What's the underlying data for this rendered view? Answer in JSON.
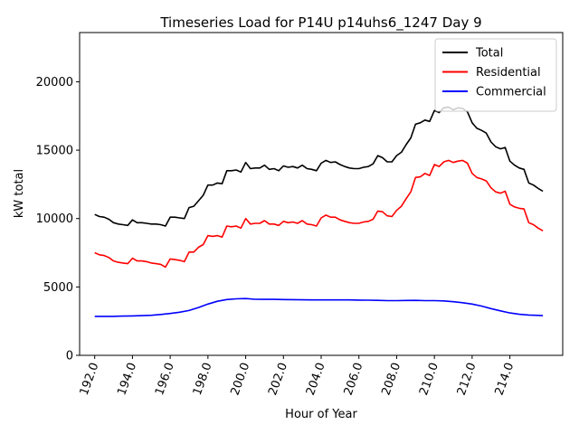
{
  "chart_data": {
    "type": "line",
    "title": "Timeseries Load for P14U p14uhs6_1247  Day 9",
    "xlabel": "Hour of Year",
    "ylabel": "kW total",
    "xlim": [
      191.2,
      216.8
    ],
    "ylim": [
      0,
      23600
    ],
    "xticks": [
      192,
      194,
      196,
      198,
      200,
      202,
      204,
      206,
      208,
      210,
      212,
      214
    ],
    "xtick_labels": [
      "192.0",
      "194.0",
      "196.0",
      "198.0",
      "200.0",
      "202.0",
      "204.0",
      "206.0",
      "208.0",
      "210.0",
      "212.0",
      "214.0"
    ],
    "yticks": [
      0,
      5000,
      10000,
      15000,
      20000
    ],
    "ytick_labels": [
      "0",
      "5000",
      "10000",
      "15000",
      "20000"
    ],
    "legend_position": "top-right",
    "series": [
      {
        "name": "Total",
        "color": "#000000",
        "x": [
          192.0,
          192.25,
          192.5,
          192.75,
          193.0,
          193.25,
          193.5,
          193.75,
          194.0,
          194.25,
          194.5,
          194.75,
          195.0,
          195.25,
          195.5,
          195.75,
          196.0,
          196.25,
          196.5,
          196.75,
          197.0,
          197.25,
          197.5,
          197.75,
          198.0,
          198.25,
          198.5,
          198.75,
          199.0,
          199.25,
          199.5,
          199.75,
          200.0,
          200.25,
          200.5,
          200.75,
          201.0,
          201.25,
          201.5,
          201.75,
          202.0,
          202.25,
          202.5,
          202.75,
          203.0,
          203.25,
          203.5,
          203.75,
          204.0,
          204.25,
          204.5,
          204.75,
          205.0,
          205.25,
          205.5,
          205.75,
          206.0,
          206.25,
          206.5,
          206.75,
          207.0,
          207.25,
          207.5,
          207.75,
          208.0,
          208.25,
          208.5,
          208.75,
          209.0,
          209.25,
          209.5,
          209.75,
          210.0,
          210.25,
          210.5,
          210.75,
          211.0,
          211.25,
          211.5,
          211.75,
          212.0,
          212.25,
          212.5,
          212.75,
          213.0,
          213.25,
          213.5,
          213.75,
          214.0,
          214.25,
          214.5,
          214.75,
          215.0,
          215.25,
          215.5,
          215.75
        ],
        "values": [
          10300,
          10150,
          10100,
          9950,
          9700,
          9600,
          9550,
          9500,
          9900,
          9700,
          9700,
          9650,
          9600,
          9600,
          9550,
          9450,
          10100,
          10100,
          10050,
          10000,
          10800,
          10900,
          11300,
          11700,
          12450,
          12450,
          12600,
          12550,
          13500,
          13500,
          13550,
          13400,
          14100,
          13650,
          13700,
          13700,
          13900,
          13600,
          13650,
          13500,
          13850,
          13750,
          13800,
          13700,
          13900,
          13650,
          13600,
          13500,
          14050,
          14250,
          14100,
          14150,
          13950,
          13800,
          13700,
          13650,
          13650,
          13750,
          13800,
          14000,
          14600,
          14450,
          14150,
          14150,
          14600,
          14850,
          15400,
          15900,
          16900,
          17000,
          17200,
          17100,
          17900,
          17750,
          18100,
          18150,
          17950,
          18100,
          18050,
          17800,
          17000,
          16600,
          16450,
          16250,
          15600,
          15250,
          15100,
          15200,
          14200,
          13900,
          13700,
          13600,
          12600,
          12450,
          12200,
          12000
        ]
      },
      {
        "name": "Residential",
        "color": "#ff0000",
        "x": [
          192.0,
          192.25,
          192.5,
          192.75,
          193.0,
          193.25,
          193.5,
          193.75,
          194.0,
          194.25,
          194.5,
          194.75,
          195.0,
          195.25,
          195.5,
          195.75,
          196.0,
          196.25,
          196.5,
          196.75,
          197.0,
          197.25,
          197.5,
          197.75,
          198.0,
          198.25,
          198.5,
          198.75,
          199.0,
          199.25,
          199.5,
          199.75,
          200.0,
          200.25,
          200.5,
          200.75,
          201.0,
          201.25,
          201.5,
          201.75,
          202.0,
          202.25,
          202.5,
          202.75,
          203.0,
          203.25,
          203.5,
          203.75,
          204.0,
          204.25,
          204.5,
          204.75,
          205.0,
          205.25,
          205.5,
          205.75,
          206.0,
          206.25,
          206.5,
          206.75,
          207.0,
          207.25,
          207.5,
          207.75,
          208.0,
          208.25,
          208.5,
          208.75,
          209.0,
          209.25,
          209.5,
          209.75,
          210.0,
          210.25,
          210.5,
          210.75,
          211.0,
          211.25,
          211.5,
          211.75,
          212.0,
          212.25,
          212.5,
          212.75,
          213.0,
          213.25,
          213.5,
          213.75,
          214.0,
          214.25,
          214.5,
          214.75,
          215.0,
          215.25,
          215.5,
          215.75
        ],
        "values": [
          7500,
          7350,
          7300,
          7150,
          6900,
          6800,
          6750,
          6700,
          7100,
          6900,
          6900,
          6850,
          6750,
          6700,
          6650,
          6450,
          7050,
          7000,
          6950,
          6850,
          7550,
          7550,
          7900,
          8100,
          8750,
          8700,
          8750,
          8650,
          9450,
          9400,
          9450,
          9300,
          10000,
          9600,
          9650,
          9650,
          9850,
          9600,
          9600,
          9500,
          9800,
          9700,
          9750,
          9650,
          9850,
          9600,
          9550,
          9450,
          10050,
          10250,
          10100,
          10100,
          9900,
          9800,
          9700,
          9650,
          9650,
          9750,
          9800,
          9950,
          10550,
          10500,
          10200,
          10150,
          10600,
          10900,
          11450,
          11950,
          13000,
          13050,
          13300,
          13150,
          13950,
          13800,
          14150,
          14250,
          14100,
          14200,
          14250,
          14050,
          13300,
          13000,
          12900,
          12750,
          12250,
          11950,
          11850,
          12000,
          11050,
          10850,
          10750,
          10700,
          9700,
          9550,
          9300,
          9100
        ]
      },
      {
        "name": "Commercial",
        "color": "#0000ff",
        "x": [
          192.0,
          192.5,
          193.0,
          193.5,
          194.0,
          194.5,
          195.0,
          195.5,
          196.0,
          196.5,
          197.0,
          197.5,
          198.0,
          198.5,
          199.0,
          199.5,
          200.0,
          200.5,
          201.0,
          201.5,
          202.0,
          202.5,
          203.0,
          203.5,
          204.0,
          204.5,
          205.0,
          205.5,
          206.0,
          206.5,
          207.0,
          207.5,
          208.0,
          208.5,
          209.0,
          209.5,
          210.0,
          210.5,
          211.0,
          211.5,
          212.0,
          212.5,
          213.0,
          213.5,
          214.0,
          214.5,
          215.0,
          215.5,
          215.75
        ],
        "values": [
          2850,
          2850,
          2850,
          2870,
          2880,
          2900,
          2930,
          2990,
          3060,
          3150,
          3280,
          3500,
          3750,
          3950,
          4080,
          4130,
          4150,
          4100,
          4090,
          4090,
          4080,
          4070,
          4060,
          4050,
          4050,
          4050,
          4050,
          4050,
          4040,
          4030,
          4020,
          4000,
          4000,
          4010,
          4020,
          4000,
          4000,
          3980,
          3920,
          3850,
          3750,
          3600,
          3420,
          3250,
          3100,
          3000,
          2950,
          2920,
          2900
        ]
      }
    ]
  }
}
